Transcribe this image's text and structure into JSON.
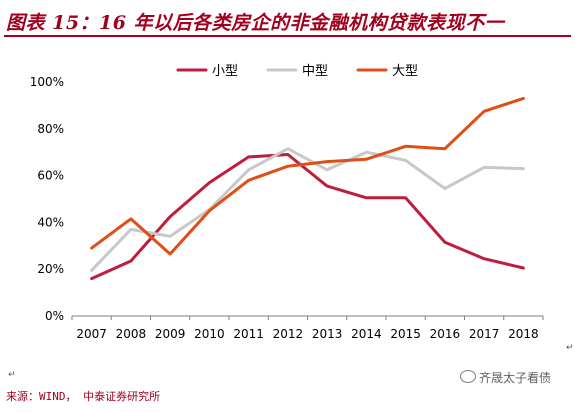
{
  "page": {
    "title": "图表 15：16 年以后各类房企的非金融机构贷款表现不一",
    "source": "来源：WIND， 中泰证券研究所",
    "watermark": "齐晟太子看债",
    "paragraph_mark": "↵"
  },
  "chart_data": {
    "type": "line",
    "title": "",
    "xlabel": "",
    "ylabel": "",
    "x": [
      "2007",
      "2008",
      "2009",
      "2010",
      "2011",
      "2012",
      "2013",
      "2014",
      "2015",
      "2016",
      "2017",
      "2018"
    ],
    "ylim": [
      0,
      100
    ],
    "yticks": [
      0,
      20,
      40,
      60,
      80,
      100
    ],
    "ytick_labels": [
      "0%",
      "20%",
      "40%",
      "60%",
      "80%",
      "100%"
    ],
    "grid": false,
    "legend_position": "top-center",
    "series": [
      {
        "name": "小型",
        "color": "#be1e3c",
        "values": [
          16,
          23.5,
          42.5,
          57,
          68,
          69,
          55.5,
          50.5,
          50.5,
          31.5,
          24.5,
          20.5
        ]
      },
      {
        "name": "中型",
        "color": "#c8c8c8",
        "values": [
          19.5,
          37,
          34,
          45.5,
          62.5,
          71.5,
          62.5,
          70,
          66.5,
          54.5,
          63.5,
          63
        ]
      },
      {
        "name": "大型",
        "color": "#e04e16",
        "values": [
          29,
          41.5,
          26.5,
          45,
          58,
          64,
          66,
          67,
          72.5,
          71.5,
          87.5,
          93
        ]
      }
    ]
  }
}
